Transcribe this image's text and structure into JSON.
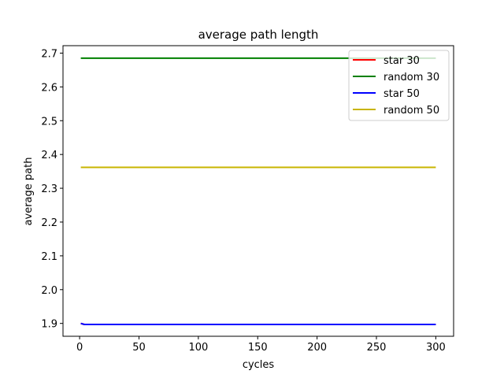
{
  "chart_data": {
    "type": "line",
    "title": "average path length",
    "xlabel": "cycles",
    "ylabel": "average path",
    "xlim": [
      -14,
      315
    ],
    "ylim": [
      1.862,
      2.722
    ],
    "xticks": [
      0,
      50,
      100,
      150,
      200,
      250,
      300
    ],
    "xtick_labels": [
      "0",
      "50",
      "100",
      "150",
      "200",
      "250",
      "300"
    ],
    "yticks": [
      1.9,
      2.0,
      2.1,
      2.2,
      2.3,
      2.4,
      2.5,
      2.6,
      2.7
    ],
    "ytick_labels": [
      "1.9",
      "2.0",
      "2.1",
      "2.2",
      "2.3",
      "2.4",
      "2.5",
      "2.6",
      "2.7"
    ],
    "grid": false,
    "legend_position": "top-right",
    "series": [
      {
        "name": "star 30",
        "color": "#ff0000",
        "x": [
          1,
          4,
          300
        ],
        "y": [
          1.9,
          1.897,
          1.897
        ]
      },
      {
        "name": "random 30",
        "color": "#008000",
        "x": [
          1,
          300
        ],
        "y": [
          2.685,
          2.685
        ]
      },
      {
        "name": "star 50",
        "color": "#0000ff",
        "x": [
          1,
          4,
          300
        ],
        "y": [
          1.9,
          1.897,
          1.897
        ]
      },
      {
        "name": "random 50",
        "color": "#c8b400",
        "x": [
          1,
          300
        ],
        "y": [
          2.362,
          2.362
        ]
      }
    ]
  }
}
